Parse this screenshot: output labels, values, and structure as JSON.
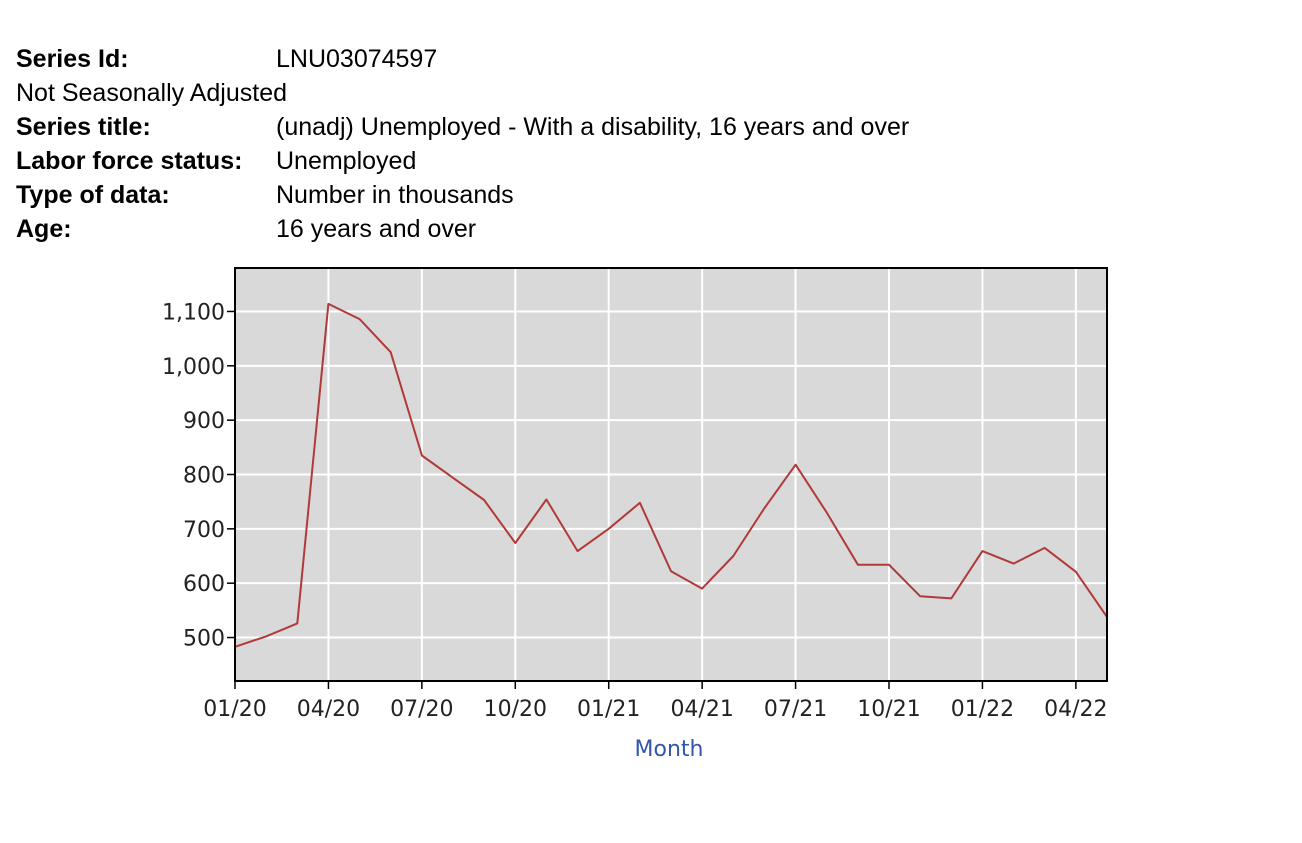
{
  "series_info": {
    "series_id_label": "Series Id:",
    "series_id_value": "LNU03074597",
    "adjustment": "Not Seasonally Adjusted",
    "series_title_label": "Series title:",
    "series_title_value": "(unadj) Unemployed - With a disability, 16 years and over",
    "labor_force_label": "Labor force status:",
    "labor_force_value": "Unemployed",
    "type_label": "Type of data:",
    "type_value": "Number in thousands",
    "age_label": "Age:",
    "age_value": "16 years and over"
  },
  "colors": {
    "plot_background": "#d9d9d9",
    "grid": "#ffffff",
    "line": "#b03a3a",
    "axis_title": "#3355aa"
  },
  "chart_data": {
    "type": "line",
    "xlabel": "Month",
    "ylabel": "",
    "x": [
      "01/20",
      "02/20",
      "03/20",
      "04/20",
      "05/20",
      "06/20",
      "07/20",
      "08/20",
      "09/20",
      "10/20",
      "11/20",
      "12/20",
      "01/21",
      "02/21",
      "03/21",
      "04/21",
      "05/21",
      "06/21",
      "07/21",
      "08/21",
      "09/21",
      "10/21",
      "11/21",
      "12/21",
      "01/22",
      "02/22",
      "03/22",
      "04/22",
      "05/22"
    ],
    "series": [
      {
        "values": [
          483,
          502,
          526,
          1114,
          1086,
          1025,
          835,
          794,
          753,
          674,
          754,
          659,
          700,
          748,
          622,
          590,
          650,
          738,
          818,
          730,
          634,
          634,
          576,
          572,
          659,
          636,
          665,
          621,
          538
        ]
      }
    ],
    "x_tick_labels": [
      "01/20",
      "04/20",
      "07/20",
      "10/20",
      "01/21",
      "04/21",
      "07/21",
      "10/21",
      "01/22",
      "04/22"
    ],
    "y_tick_values": [
      500,
      600,
      700,
      800,
      900,
      1000,
      1100
    ],
    "y_tick_labels": [
      "500",
      "600",
      "700",
      "800",
      "900",
      "1,000",
      "1,100"
    ],
    "ylim": [
      420,
      1180
    ],
    "grid": true
  }
}
